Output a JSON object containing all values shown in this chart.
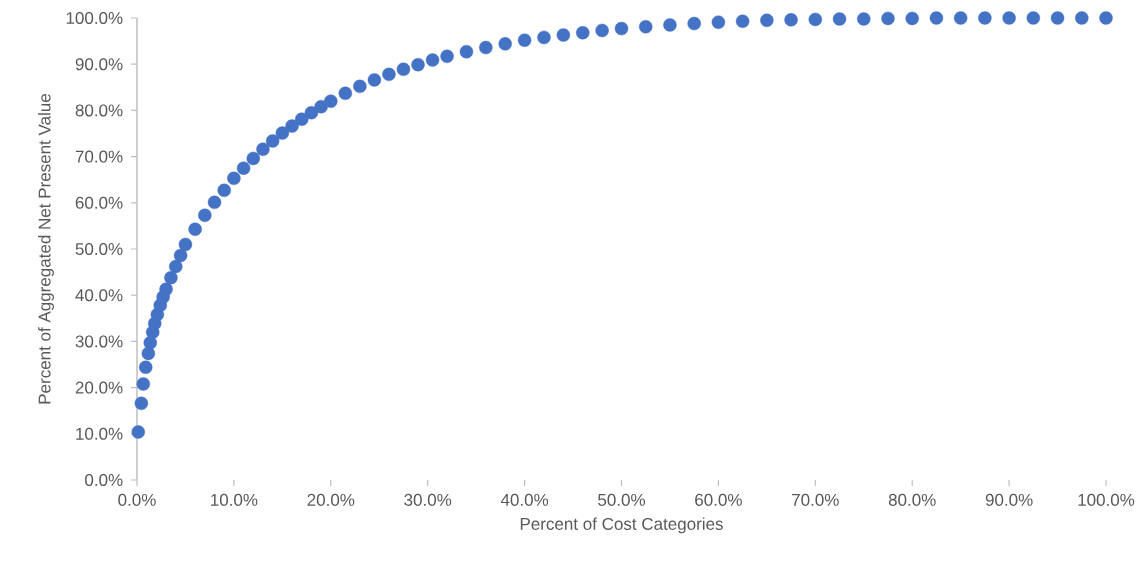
{
  "chart_data": {
    "type": "scatter",
    "xlabel": "Percent of Cost Categories",
    "ylabel": "Percent of Aggregated Net Present Value",
    "marker": "circle",
    "grid": false,
    "legend": false,
    "xlim": [
      0,
      100
    ],
    "ylim": [
      0,
      100
    ],
    "xticks": [
      {
        "value": 0,
        "label": "0.0%"
      },
      {
        "value": 10,
        "label": "10.0%"
      },
      {
        "value": 20,
        "label": "20.0%"
      },
      {
        "value": 30,
        "label": "30.0%"
      },
      {
        "value": 40,
        "label": "40.0%"
      },
      {
        "value": 50,
        "label": "50.0%"
      },
      {
        "value": 60,
        "label": "60.0%"
      },
      {
        "value": 70,
        "label": "70.0%"
      },
      {
        "value": 80,
        "label": "80.0%"
      },
      {
        "value": 90,
        "label": "90.0%"
      },
      {
        "value": 100,
        "label": "100.0%"
      }
    ],
    "yticks": [
      {
        "value": 0,
        "label": "0.0%"
      },
      {
        "value": 10,
        "label": "10.0%"
      },
      {
        "value": 20,
        "label": "20.0%"
      },
      {
        "value": 30,
        "label": "30.0%"
      },
      {
        "value": 40,
        "label": "40.0%"
      },
      {
        "value": 50,
        "label": "50.0%"
      },
      {
        "value": 60,
        "label": "60.0%"
      },
      {
        "value": 70,
        "label": "70.0%"
      },
      {
        "value": 80,
        "label": "80.0%"
      },
      {
        "value": 90,
        "label": "90.0%"
      },
      {
        "value": 100,
        "label": "100.0%"
      }
    ],
    "series": [
      {
        "color": "#4472c4",
        "x": [
          0.13,
          0.45,
          0.65,
          0.9,
          1.17,
          1.37,
          1.62,
          1.83,
          2.1,
          2.4,
          2.7,
          3,
          3.5,
          4,
          4.5,
          5,
          6,
          7,
          8,
          9,
          10,
          11,
          12,
          13,
          14,
          15,
          16,
          17,
          18,
          19,
          20,
          21.5,
          23,
          24.5,
          26,
          27.5,
          29,
          30.5,
          32,
          34,
          36,
          38,
          40,
          42,
          44,
          46,
          48,
          50,
          52.5,
          55,
          57.5,
          60,
          62.5,
          65,
          67.5,
          70,
          72.5,
          75,
          77.5,
          80,
          82.5,
          85,
          87.5,
          90,
          92.5,
          95,
          97.5,
          100
        ],
        "values": [
          10.4,
          16.6,
          20.8,
          24.4,
          27.4,
          29.7,
          32.0,
          33.9,
          35.8,
          37.8,
          39.6,
          41.3,
          43.8,
          46.2,
          48.6,
          51,
          54.3,
          57.3,
          60.1,
          62.7,
          65.3,
          67.5,
          69.6,
          71.6,
          73.4,
          75.1,
          76.6,
          78.1,
          79.5,
          80.8,
          82,
          83.7,
          85.2,
          86.6,
          87.8,
          88.9,
          89.9,
          90.9,
          91.7,
          92.7,
          93.6,
          94.4,
          95.2,
          95.8,
          96.3,
          96.8,
          97.3,
          97.7,
          98.1,
          98.5,
          98.8,
          99.1,
          99.3,
          99.5,
          99.6,
          99.7,
          99.8,
          99.8,
          99.9,
          99.9,
          100,
          100,
          100,
          100,
          100,
          100,
          100,
          100
        ]
      }
    ]
  }
}
